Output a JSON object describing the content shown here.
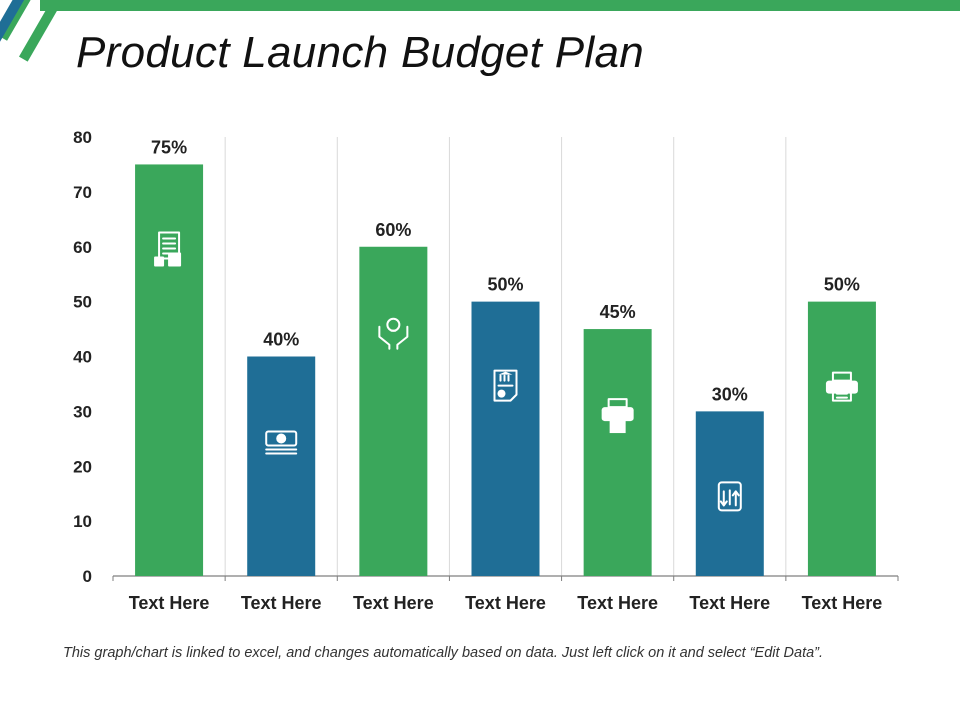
{
  "slide": {
    "title": "Product Launch Budget Plan",
    "footnote": "This graph/chart is linked to excel, and changes automatically based on data. Just left click on it and select “Edit Data”."
  },
  "colors": {
    "green": "#3aa75b",
    "blue": "#1f6e96",
    "grid": "#d9d9d9",
    "axis": "#7f7f7f"
  },
  "chart_data": {
    "type": "bar",
    "title": "",
    "xlabel": "",
    "ylabel": "",
    "ylim": [
      0,
      80
    ],
    "yticks": [
      0,
      10,
      20,
      30,
      40,
      50,
      60,
      70,
      80
    ],
    "grid": "vertical separators",
    "categories": [
      "Text Here",
      "Text Here",
      "Text Here",
      "Text Here",
      "Text Here",
      "Text Here",
      "Text Here"
    ],
    "values": [
      75,
      40,
      60,
      50,
      45,
      30,
      50
    ],
    "data_labels": [
      "75%",
      "40%",
      "60%",
      "50%",
      "45%",
      "30%",
      "50%"
    ],
    "bar_colors": [
      "green",
      "blue",
      "green",
      "blue",
      "green",
      "blue",
      "green"
    ],
    "bar_icons": [
      "calculator-document-icon",
      "money-stack-icon",
      "idea-hands-icon",
      "bank-document-icon",
      "printer-dollar-icon",
      "dollar-exchange-icon",
      "printer-icon"
    ]
  }
}
